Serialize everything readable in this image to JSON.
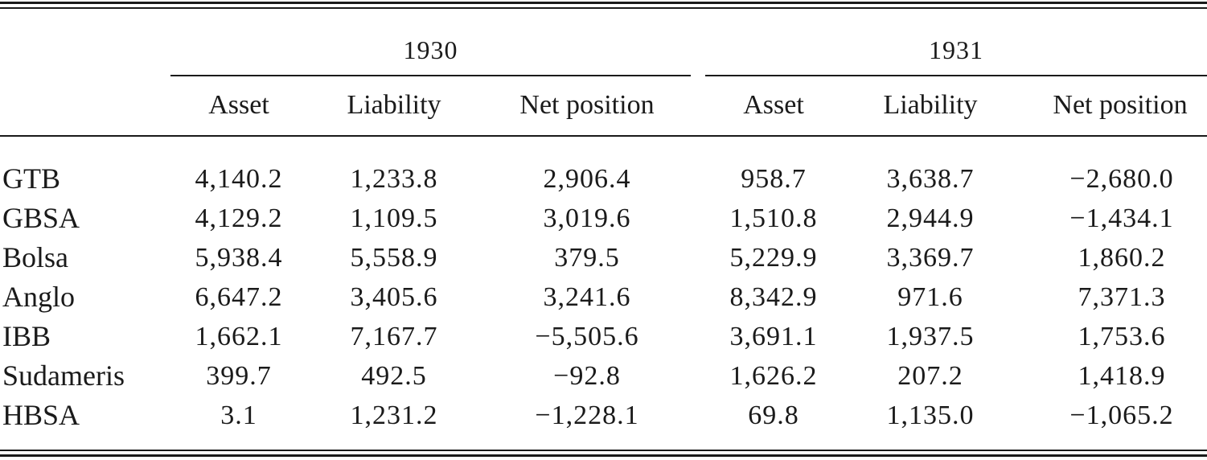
{
  "table": {
    "groups": [
      {
        "year": "1930",
        "columns": [
          "Asset",
          "Liability",
          "Net position"
        ]
      },
      {
        "year": "1931",
        "columns": [
          "Asset",
          "Liability",
          "Net position"
        ]
      }
    ],
    "rows": [
      {
        "label": "GTB",
        "values": [
          "4,140.2",
          "1,233.8",
          "2,906.4",
          "958.7",
          "3,638.7",
          "−2,680.0"
        ]
      },
      {
        "label": "GBSA",
        "values": [
          "4,129.2",
          "1,109.5",
          "3,019.6",
          "1,510.8",
          "2,944.9",
          "−1,434.1"
        ]
      },
      {
        "label": "Bolsa",
        "values": [
          "5,938.4",
          "5,558.9",
          "379.5",
          "5,229.9",
          "3,369.7",
          "1,860.2"
        ]
      },
      {
        "label": "Anglo",
        "values": [
          "6,647.2",
          "3,405.6",
          "3,241.6",
          "8,342.9",
          "971.6",
          "7,371.3"
        ]
      },
      {
        "label": "IBB",
        "values": [
          "1,662.1",
          "7,167.7",
          "−5,505.6",
          "3,691.1",
          "1,937.5",
          "1,753.6"
        ]
      },
      {
        "label": "Sudameris",
        "values": [
          "399.7",
          "492.5",
          "−92.8",
          "1,626.2",
          "207.2",
          "1,418.9"
        ]
      },
      {
        "label": "HBSA",
        "values": [
          "3.1",
          "1,231.2",
          "−1,228.1",
          "69.8",
          "1,135.0",
          "−1,065.2"
        ]
      }
    ]
  }
}
